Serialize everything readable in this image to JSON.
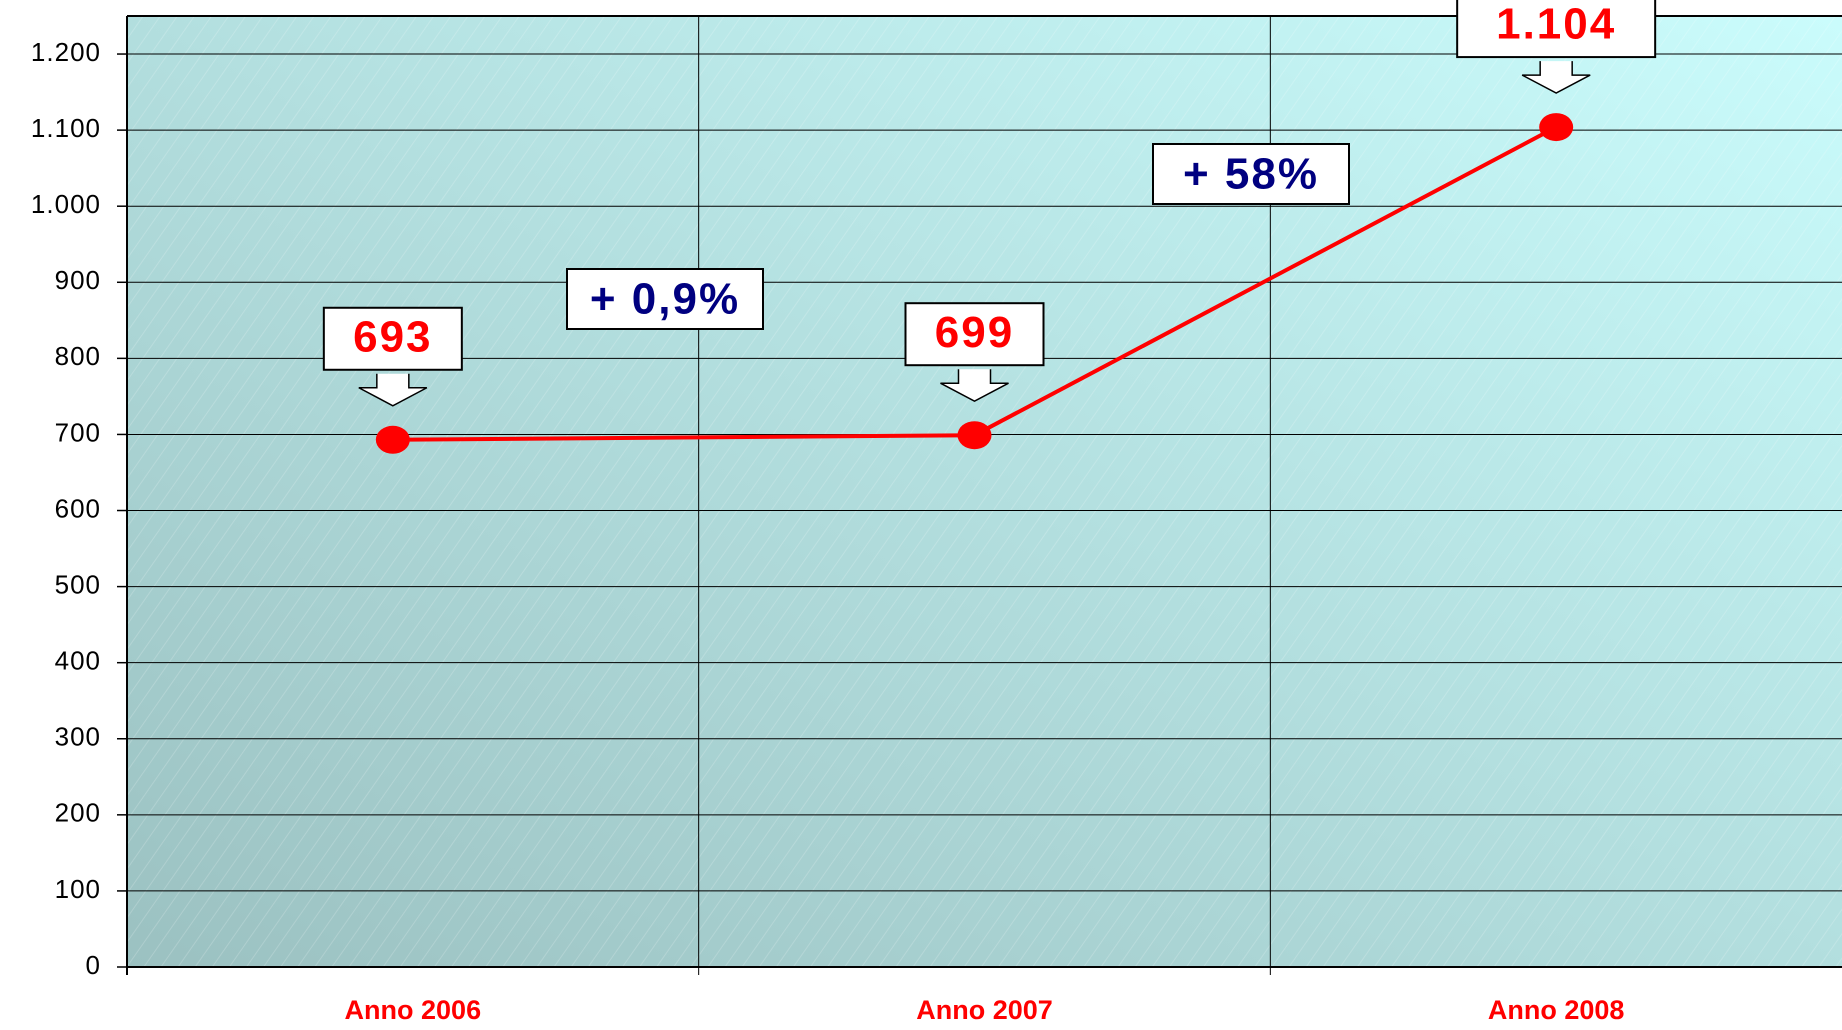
{
  "chart_data": {
    "type": "line",
    "categories": [
      "Anno 2006",
      "Anno 2007",
      "Anno 2008"
    ],
    "series": [
      {
        "name": null,
        "color": "#ff0000",
        "values": [
          693,
          699,
          1104
        ],
        "value_labels": [
          "693",
          "699",
          "1.104"
        ]
      }
    ],
    "ylim": [
      0,
      1250
    ],
    "yticks": [
      0,
      100,
      200,
      300,
      400,
      500,
      600,
      700,
      800,
      900,
      {
        "value": 1000,
        "label": "1.000"
      },
      {
        "value": 1100,
        "label": "1.100"
      },
      {
        "value": 1200,
        "label": "1.200"
      }
    ],
    "grid": true,
    "annotations": [
      "+ 0,9%",
      "+ 58%"
    ]
  }
}
